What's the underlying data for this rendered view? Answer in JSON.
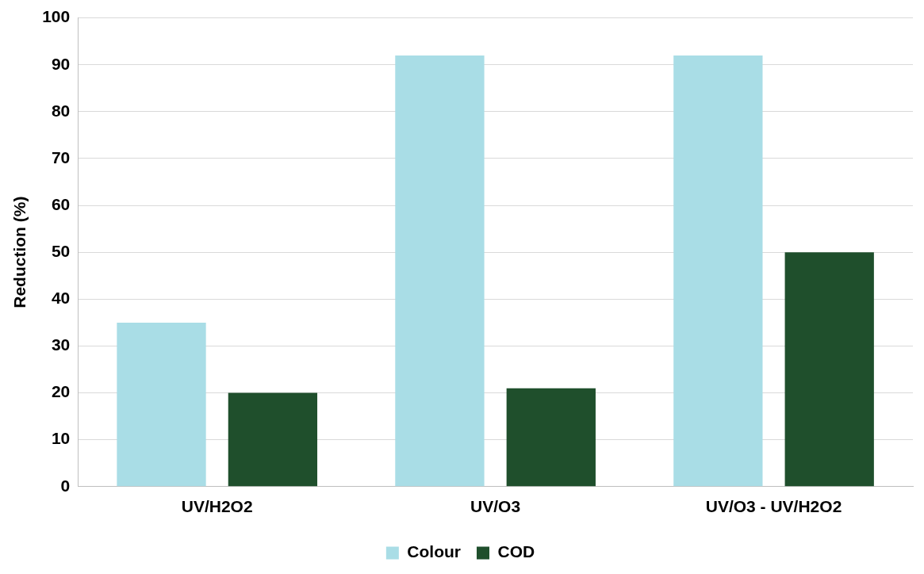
{
  "chart_data": {
    "type": "bar",
    "ylabel": "Reduction (%)",
    "categories": [
      "UV/H2O2",
      "UV/O3",
      "UV/O3 - UV/H2O2"
    ],
    "series": [
      {
        "name": "Colour",
        "color": "#a9dde6",
        "values": [
          35,
          92,
          92
        ]
      },
      {
        "name": "COD",
        "color": "#1f4f2c",
        "values": [
          20,
          21,
          50
        ]
      }
    ],
    "ylim": [
      0,
      100
    ],
    "yticks": [
      0,
      10,
      20,
      30,
      40,
      50,
      60,
      70,
      80,
      90,
      100
    ],
    "grid": "y",
    "legend": "bottom"
  }
}
